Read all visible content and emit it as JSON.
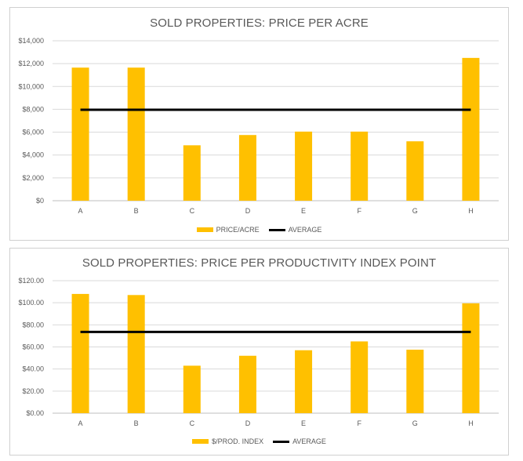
{
  "colors": {
    "bar": "#FFC000",
    "average_line": "#000000",
    "grid": "#d9d9d9",
    "text": "#595959"
  },
  "chart_data": [
    {
      "type": "bar",
      "title": "SOLD PROPERTIES: PRICE PER ACRE",
      "categories": [
        "A",
        "B",
        "C",
        "D",
        "E",
        "F",
        "G",
        "H"
      ],
      "series": [
        {
          "name": "PRICE/ACRE",
          "type": "bar",
          "values": [
            11650,
            11650,
            4850,
            5750,
            6050,
            6050,
            5200,
            12500
          ]
        },
        {
          "name": "AVERAGE",
          "type": "line",
          "values": [
            7960,
            7960,
            7960,
            7960,
            7960,
            7960,
            7960,
            7960
          ]
        }
      ],
      "ylim": [
        0,
        14000
      ],
      "yticks": [
        0,
        2000,
        4000,
        6000,
        8000,
        10000,
        12000,
        14000
      ],
      "ytick_labels": [
        "$0",
        "$2,000",
        "$4,000",
        "$6,000",
        "$8,000",
        "$10,000",
        "$12,000",
        "$14,000"
      ],
      "grid": true,
      "legend": "bottom"
    },
    {
      "type": "bar",
      "title": "SOLD PROPERTIES: PRICE PER PRODUCTIVITY INDEX  POINT",
      "categories": [
        "A",
        "B",
        "C",
        "D",
        "E",
        "F",
        "G",
        "H"
      ],
      "series": [
        {
          "name": "$/PROD. INDEX",
          "type": "bar",
          "values": [
            108,
            107,
            43,
            52,
            57,
            65,
            57.5,
            99.5
          ]
        },
        {
          "name": "AVERAGE",
          "type": "line",
          "values": [
            73.6,
            73.6,
            73.6,
            73.6,
            73.6,
            73.6,
            73.6,
            73.6
          ]
        }
      ],
      "ylim": [
        0,
        120
      ],
      "yticks": [
        0,
        20,
        40,
        60,
        80,
        100,
        120
      ],
      "ytick_labels": [
        "$0.00",
        "$20.00",
        "$40.00",
        "$60.00",
        "$80.00",
        "$100.00",
        "$120.00"
      ],
      "grid": true,
      "legend": "bottom"
    }
  ]
}
